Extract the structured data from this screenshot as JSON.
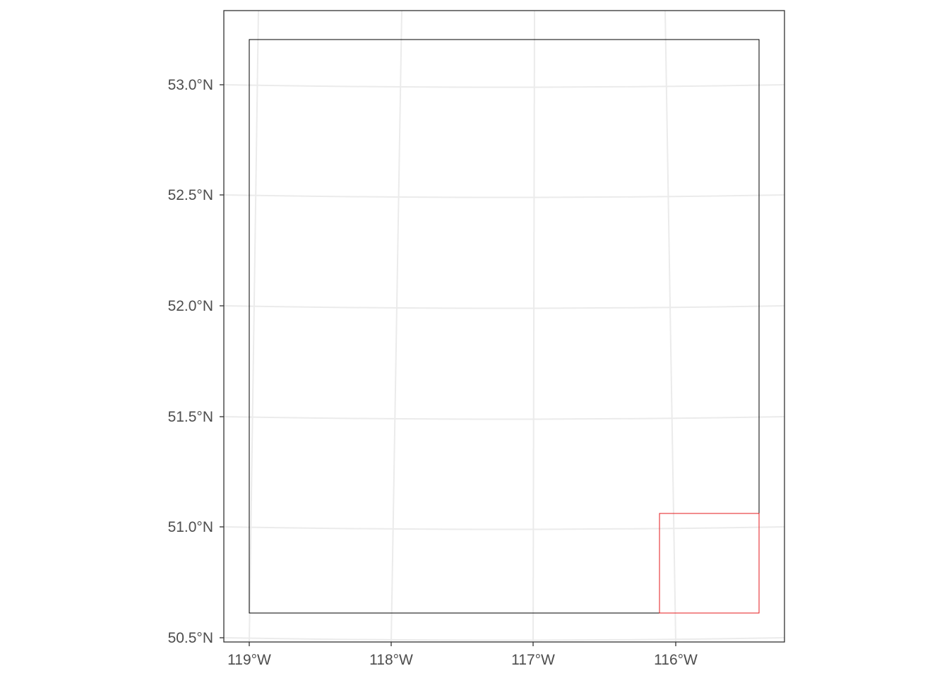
{
  "map": {
    "y_ticks": [
      {
        "value": 53.0,
        "label": "53.0°N"
      },
      {
        "value": 52.5,
        "label": "52.5°N"
      },
      {
        "value": 52.0,
        "label": "52.0°N"
      },
      {
        "value": 51.5,
        "label": "51.5°N"
      },
      {
        "value": 51.0,
        "label": "51.0°N"
      },
      {
        "value": 50.5,
        "label": "50.5°N"
      }
    ],
    "x_ticks": [
      {
        "value": -119,
        "label": "119°W"
      },
      {
        "value": -118,
        "label": "118°W"
      },
      {
        "value": -117,
        "label": "117°W"
      },
      {
        "value": -116,
        "label": "116°W"
      }
    ],
    "colors": {
      "graticule": "#ebebeb",
      "panel_border": "#333333",
      "extent_box": "#000000",
      "highlight_box": "#e41a1c",
      "tick_text": "#4d4d4d"
    }
  }
}
